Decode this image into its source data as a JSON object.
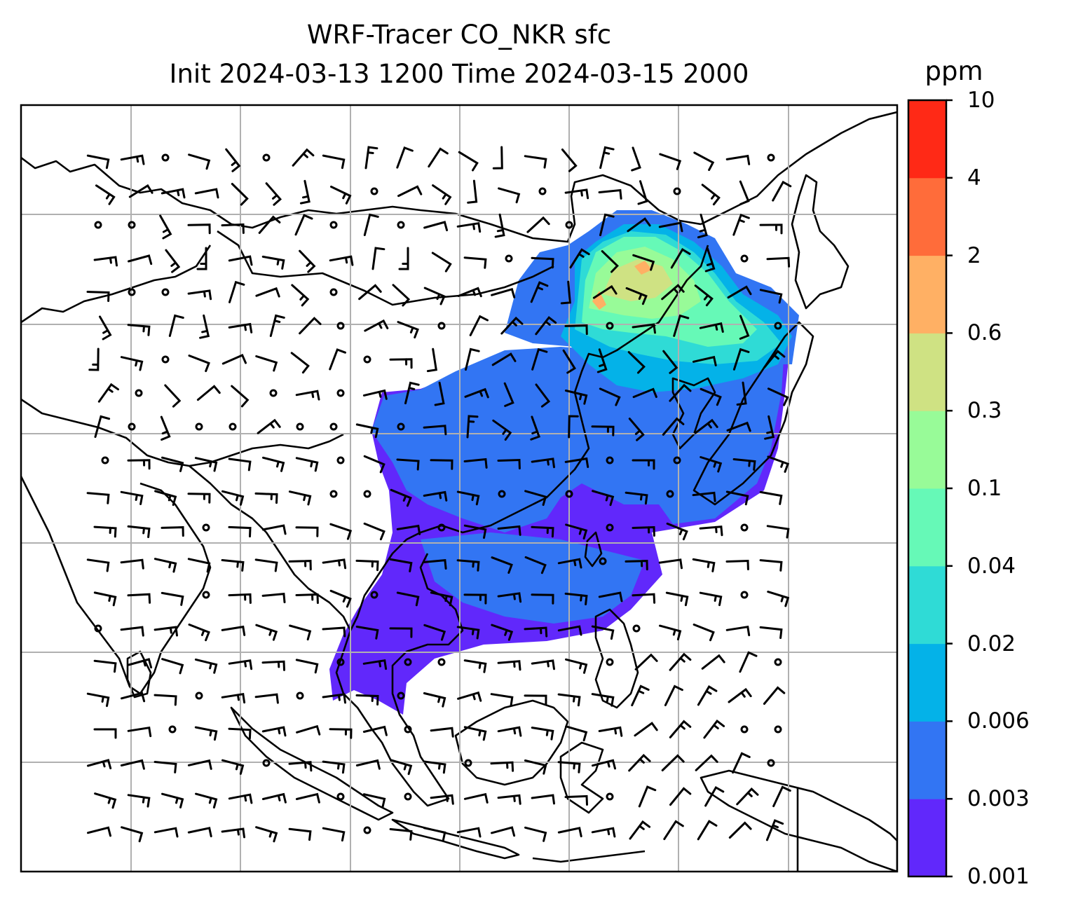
{
  "title": {
    "line1": "WRF-Tracer CO_NKR sfc",
    "line2": "Init 2024-03-13 1200 Time 2024-03-15 2000"
  },
  "colorbar": {
    "unit": "ppm",
    "levels": [
      "0.001",
      "0.003",
      "0.006",
      "0.02",
      "0.04",
      "0.1",
      "0.3",
      "0.6",
      "2",
      "4",
      "10"
    ],
    "colors": [
      "#6128fb",
      "#3275f3",
      "#04b2e8",
      "#2fdbd6",
      "#66f9b7",
      "#98fb98",
      "#cfe283",
      "#ffb064",
      "#ff6c3a",
      "#ff2916"
    ]
  },
  "map": {
    "graticule": true,
    "wind_barbs": true,
    "coastlines": true
  }
}
